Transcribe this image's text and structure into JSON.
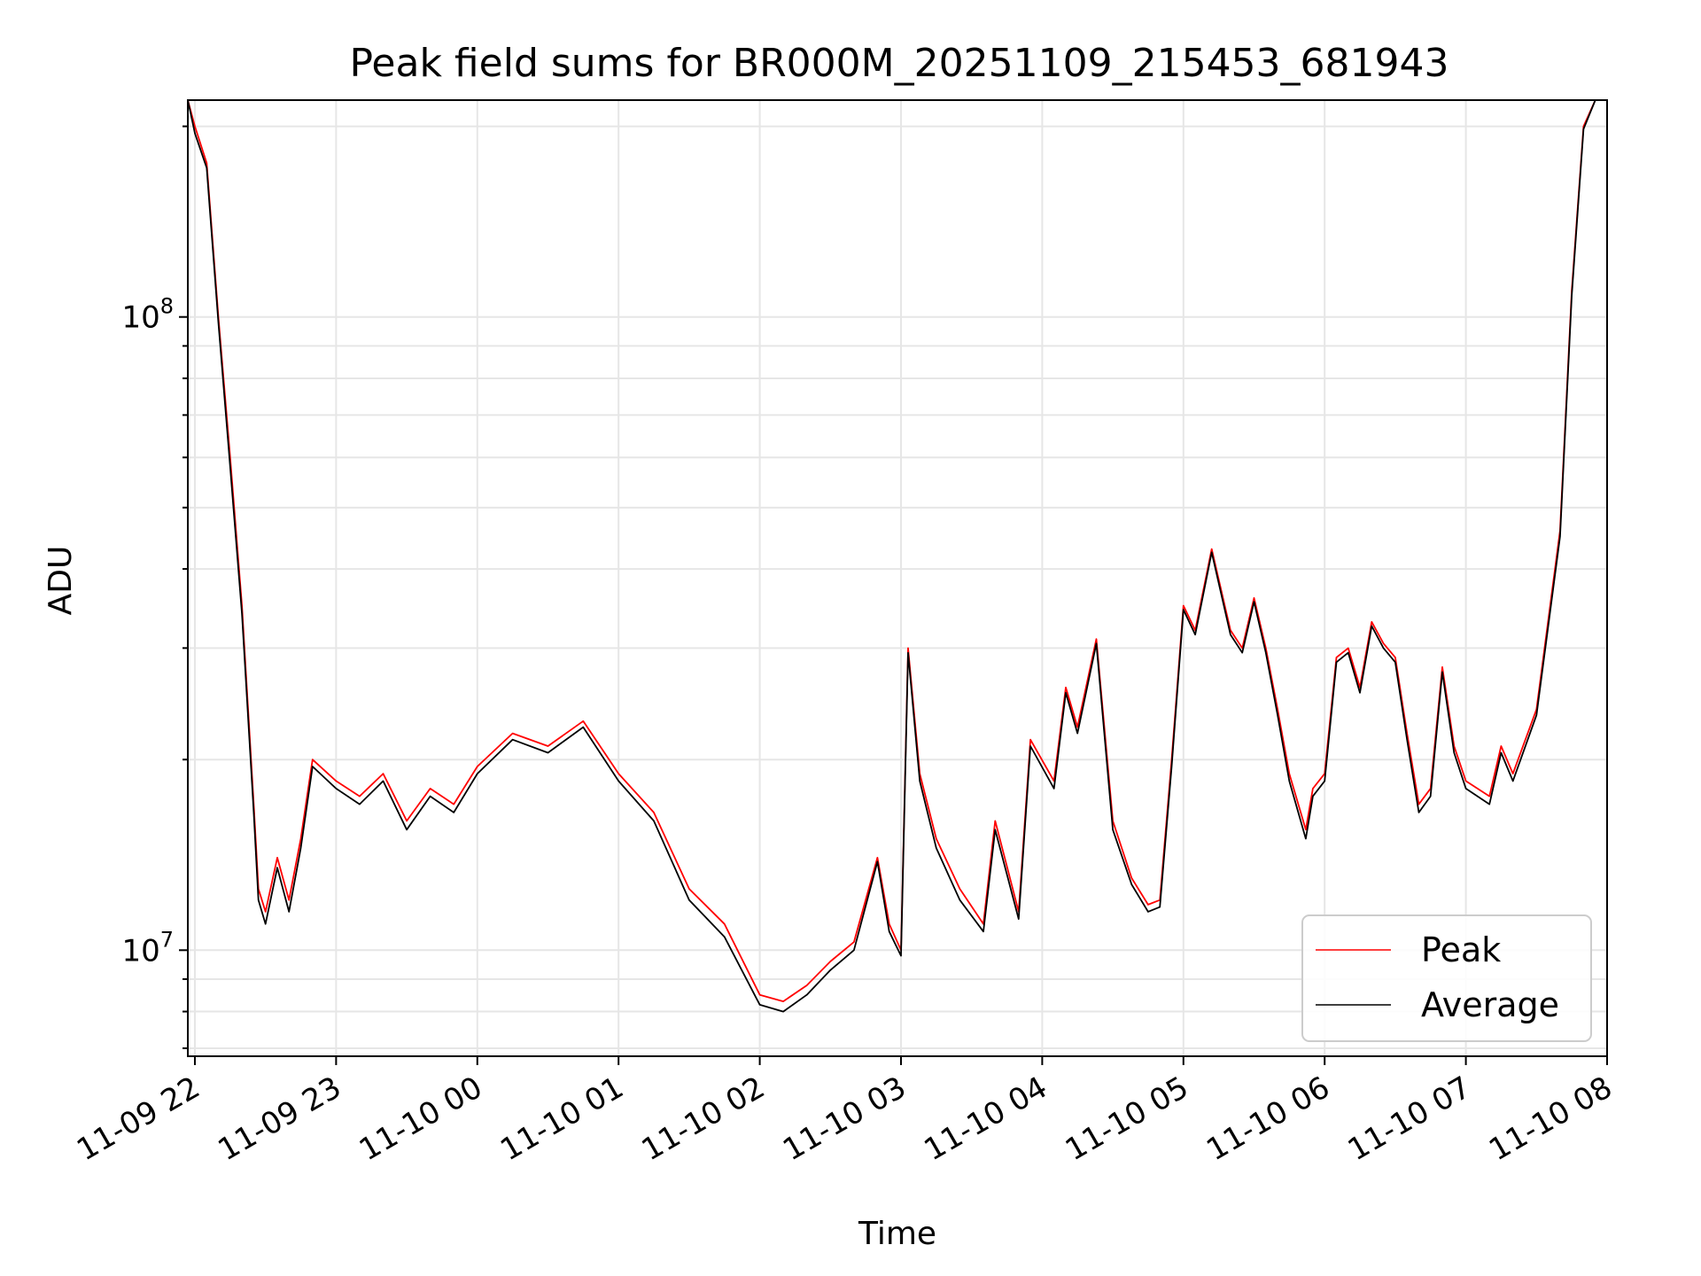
{
  "chart_data": {
    "type": "line",
    "title": "Peak field sums for BR000M_20251109_215453_681943",
    "xlabel": "Time",
    "ylabel": "ADU",
    "yscale": "log",
    "ylim": [
      6800000,
      220000000
    ],
    "xlim": [
      "2025-11-09 21:57",
      "2025-11-10 08:00"
    ],
    "x_ticks": [
      "11-09 22",
      "11-09 23",
      "11-10 00",
      "11-10 01",
      "11-10 02",
      "11-10 03",
      "11-10 04",
      "11-10 05",
      "11-10 06",
      "11-10 07",
      "11-10 08"
    ],
    "y_ticks": [
      {
        "value": 10000000,
        "base": "10",
        "exp": "7"
      },
      {
        "value": 100000000,
        "base": "10",
        "exp": "8"
      }
    ],
    "grid": true,
    "legend_position": "bottom-right",
    "colors": {
      "peak": "#ff0000",
      "average": "#000000"
    },
    "x": [
      "2025-11-09 21:57",
      "2025-11-09 22:00",
      "2025-11-09 22:05",
      "2025-11-09 22:10",
      "2025-11-09 22:15",
      "2025-11-09 22:20",
      "2025-11-09 22:25",
      "2025-11-09 22:27",
      "2025-11-09 22:30",
      "2025-11-09 22:35",
      "2025-11-09 22:40",
      "2025-11-09 22:45",
      "2025-11-09 22:50",
      "2025-11-09 23:00",
      "2025-11-09 23:10",
      "2025-11-09 23:20",
      "2025-11-09 23:30",
      "2025-11-09 23:40",
      "2025-11-09 23:50",
      "2025-11-10 00:00",
      "2025-11-10 00:15",
      "2025-11-10 00:30",
      "2025-11-10 00:45",
      "2025-11-10 01:00",
      "2025-11-10 01:15",
      "2025-11-10 01:30",
      "2025-11-10 01:45",
      "2025-11-10 02:00",
      "2025-11-10 02:10",
      "2025-11-10 02:20",
      "2025-11-10 02:30",
      "2025-11-10 02:40",
      "2025-11-10 02:50",
      "2025-11-10 02:55",
      "2025-11-10 03:00",
      "2025-11-10 03:03",
      "2025-11-10 03:08",
      "2025-11-10 03:15",
      "2025-11-10 03:25",
      "2025-11-10 03:35",
      "2025-11-10 03:40",
      "2025-11-10 03:50",
      "2025-11-10 03:55",
      "2025-11-10 04:05",
      "2025-11-10 04:10",
      "2025-11-10 04:15",
      "2025-11-10 04:23",
      "2025-11-10 04:30",
      "2025-11-10 04:38",
      "2025-11-10 04:45",
      "2025-11-10 04:50",
      "2025-11-10 04:55",
      "2025-11-10 05:00",
      "2025-11-10 05:05",
      "2025-11-10 05:12",
      "2025-11-10 05:20",
      "2025-11-10 05:25",
      "2025-11-10 05:30",
      "2025-11-10 05:35",
      "2025-11-10 05:40",
      "2025-11-10 05:45",
      "2025-11-10 05:52",
      "2025-11-10 05:55",
      "2025-11-10 06:00",
      "2025-11-10 06:05",
      "2025-11-10 06:10",
      "2025-11-10 06:15",
      "2025-11-10 06:20",
      "2025-11-10 06:25",
      "2025-11-10 06:30",
      "2025-11-10 06:35",
      "2025-11-10 06:40",
      "2025-11-10 06:45",
      "2025-11-10 06:50",
      "2025-11-10 06:55",
      "2025-11-10 07:00",
      "2025-11-10 07:10",
      "2025-11-10 07:15",
      "2025-11-10 07:20",
      "2025-11-10 07:30",
      "2025-11-10 07:40",
      "2025-11-10 07:45",
      "2025-11-10 07:50",
      "2025-11-10 07:55"
    ],
    "series": [
      {
        "name": "Peak",
        "values": [
          220000000,
          200000000,
          175000000,
          100000000,
          60000000,
          35000000,
          17000000,
          12500000,
          11500000,
          14000000,
          12000000,
          15000000,
          20000000,
          18500000,
          17500000,
          19000000,
          16000000,
          18000000,
          17000000,
          19500000,
          22000000,
          21000000,
          23000000,
          19000000,
          16500000,
          12500000,
          11000000,
          8500000,
          8300000,
          8800000,
          9600000,
          10300000,
          14000000,
          11000000,
          10000000,
          30000000,
          19000000,
          15000000,
          12500000,
          11000000,
          16000000,
          11500000,
          21500000,
          18500000,
          26000000,
          22500000,
          31000000,
          16000000,
          13000000,
          11800000,
          12000000,
          20000000,
          35000000,
          32000000,
          43000000,
          32000000,
          30000000,
          36000000,
          30000000,
          24000000,
          19000000,
          15500000,
          18000000,
          19000000,
          29000000,
          30000000,
          26000000,
          33000000,
          30500000,
          29000000,
          22000000,
          17000000,
          18000000,
          28000000,
          21000000,
          18500000,
          17500000,
          21000000,
          19000000,
          24000000,
          46000000,
          110000000,
          200000000,
          220000000
        ]
      },
      {
        "name": "Average",
        "values": [
          220000000,
          195000000,
          172000000,
          98000000,
          58000000,
          34000000,
          16500000,
          12000000,
          11000000,
          13500000,
          11500000,
          14500000,
          19500000,
          18000000,
          17000000,
          18500000,
          15500000,
          17500000,
          16500000,
          19000000,
          21500000,
          20500000,
          22500000,
          18500000,
          16000000,
          12000000,
          10500000,
          8200000,
          8000000,
          8500000,
          9300000,
          10000000,
          13800000,
          10700000,
          9800000,
          29500000,
          18500000,
          14500000,
          12000000,
          10700000,
          15500000,
          11200000,
          21000000,
          18000000,
          25500000,
          22000000,
          30500000,
          15500000,
          12700000,
          11500000,
          11700000,
          19500000,
          34500000,
          31500000,
          42500000,
          31500000,
          29500000,
          35500000,
          29500000,
          23500000,
          18500000,
          15000000,
          17500000,
          18500000,
          28500000,
          29500000,
          25500000,
          32500000,
          30000000,
          28500000,
          21500000,
          16500000,
          17500000,
          27500000,
          20500000,
          18000000,
          17000000,
          20500000,
          18500000,
          23500000,
          45000000,
          108000000,
          198000000,
          220000000
        ]
      }
    ]
  }
}
